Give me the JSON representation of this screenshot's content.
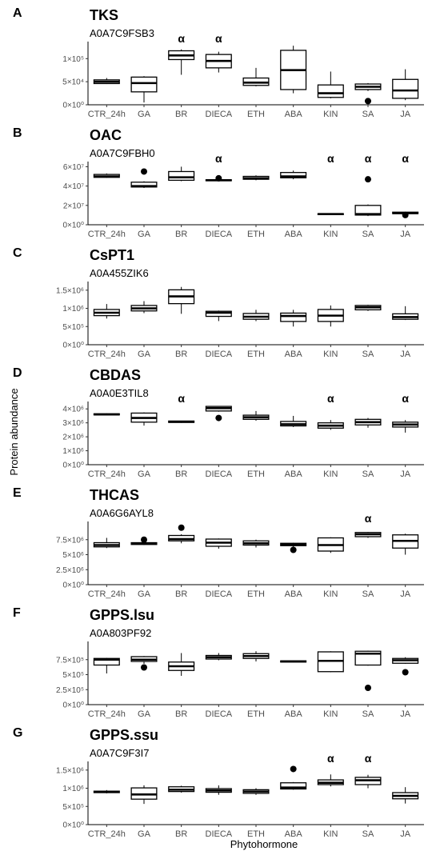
{
  "chart_data": {
    "type": "box",
    "xlabel": "Phytohormone",
    "ylabel": "Protein abundance",
    "categories": [
      "CTR_24h",
      "GA",
      "BR",
      "DIECA",
      "ETH",
      "ABA",
      "KIN",
      "SA",
      "JA"
    ],
    "significance_symbol": "α",
    "panels": [
      {
        "letter": "A",
        "title": "TKS",
        "subtitle": "A0A7C9FSB3",
        "ylim": [
          0,
          130000
        ],
        "y_ticks": [
          0,
          50000,
          100000
        ],
        "y_tick_labels": [
          "0×10⁰",
          "5×10⁴",
          "1×10⁵"
        ],
        "significant": [
          "BR",
          "DIECA"
        ],
        "boxes": [
          {
            "category": "CTR_24h",
            "whisker_low": 45000,
            "q1": 46000,
            "median": 50000,
            "q3": 54000,
            "whisker_high": 58000,
            "outliers": []
          },
          {
            "category": "GA",
            "whisker_low": 5000,
            "q1": 28000,
            "median": 47000,
            "q3": 60000,
            "whisker_high": 62000,
            "outliers": []
          },
          {
            "category": "BR",
            "whisker_low": 65000,
            "q1": 98000,
            "median": 107000,
            "q3": 117000,
            "whisker_high": 120000,
            "outliers": []
          },
          {
            "category": "DIECA",
            "whisker_low": 70000,
            "q1": 80000,
            "median": 95000,
            "q3": 109000,
            "whisker_high": 115000,
            "outliers": []
          },
          {
            "category": "ETH",
            "whisker_low": 40000,
            "q1": 42000,
            "median": 48000,
            "q3": 58000,
            "whisker_high": 80000,
            "outliers": []
          },
          {
            "category": "ABA",
            "whisker_low": 25000,
            "q1": 33000,
            "median": 75000,
            "q3": 118000,
            "whisker_high": 128000,
            "outliers": []
          },
          {
            "category": "KIN",
            "whisker_low": 14000,
            "q1": 16000,
            "median": 25000,
            "q3": 43000,
            "whisker_high": 72000,
            "outliers": []
          },
          {
            "category": "SA",
            "whisker_low": 30000,
            "q1": 33000,
            "median": 39000,
            "q3": 45000,
            "whisker_high": 47000,
            "outliers": [
              8000
            ]
          },
          {
            "category": "JA",
            "whisker_low": 10000,
            "q1": 14000,
            "median": 31000,
            "q3": 55000,
            "whisker_high": 77000,
            "outliers": []
          }
        ]
      },
      {
        "letter": "B",
        "title": "OAC",
        "subtitle": "A0A7C9FBH0",
        "ylim": [
          0,
          62000000
        ],
        "y_ticks": [
          0,
          20000000,
          40000000,
          60000000
        ],
        "y_tick_labels": [
          "0×10⁰",
          "2×10⁷",
          "4×10⁷",
          "6×10⁷"
        ],
        "significant": [
          "DIECA",
          "KIN",
          "SA",
          "JA"
        ],
        "boxes": [
          {
            "category": "CTR_24h",
            "whisker_low": 48500000,
            "q1": 49000000,
            "median": 50000000,
            "q3": 52000000,
            "whisker_high": 53000000,
            "outliers": []
          },
          {
            "category": "GA",
            "whisker_low": 38000000,
            "q1": 39000000,
            "median": 40000000,
            "q3": 44000000,
            "whisker_high": 45000000,
            "outliers": [
              55000000
            ]
          },
          {
            "category": "BR",
            "whisker_low": 45000000,
            "q1": 46000000,
            "median": 49000000,
            "q3": 55000000,
            "whisker_high": 60000000,
            "outliers": []
          },
          {
            "category": "DIECA",
            "whisker_low": 45000000,
            "q1": 45500000,
            "median": 46000000,
            "q3": 46500000,
            "whisker_high": 47000000,
            "outliers": [
              48000000
            ]
          },
          {
            "category": "ETH",
            "whisker_low": 46000000,
            "q1": 47000000,
            "median": 48000000,
            "q3": 50000000,
            "whisker_high": 51000000,
            "outliers": []
          },
          {
            "category": "ABA",
            "whisker_low": 47000000,
            "q1": 48500000,
            "median": 50000000,
            "q3": 54000000,
            "whisker_high": 56000000,
            "outliers": []
          },
          {
            "category": "KIN",
            "whisker_low": 10000000,
            "q1": 10500000,
            "median": 11000000,
            "q3": 11500000,
            "whisker_high": 12000000,
            "outliers": []
          },
          {
            "category": "SA",
            "whisker_low": 9000000,
            "q1": 10000000,
            "median": 11000000,
            "q3": 20000000,
            "whisker_high": 21000000,
            "outliers": [
              47000000
            ]
          },
          {
            "category": "JA",
            "whisker_low": 11000000,
            "q1": 11500000,
            "median": 12000000,
            "q3": 13000000,
            "whisker_high": 13500000,
            "outliers": [
              10000000
            ]
          }
        ]
      },
      {
        "letter": "C",
        "title": "CsPT1",
        "subtitle": "A0A455ZIK6",
        "ylim": [
          0,
          1650000
        ],
        "y_ticks": [
          0,
          500000,
          1000000,
          1500000
        ],
        "y_tick_labels": [
          "0×10⁰",
          "5×10⁵",
          "1×10⁶",
          "1.5×10⁶"
        ],
        "significant": [],
        "boxes": [
          {
            "category": "CTR_24h",
            "whisker_low": 720000,
            "q1": 800000,
            "median": 880000,
            "q3": 970000,
            "whisker_high": 1120000,
            "outliers": []
          },
          {
            "category": "GA",
            "whisker_low": 870000,
            "q1": 930000,
            "median": 1000000,
            "q3": 1080000,
            "whisker_high": 1200000,
            "outliers": []
          },
          {
            "category": "BR",
            "whisker_low": 850000,
            "q1": 1130000,
            "median": 1330000,
            "q3": 1510000,
            "whisker_high": 1590000,
            "outliers": []
          },
          {
            "category": "DIECA",
            "whisker_low": 650000,
            "q1": 780000,
            "median": 880000,
            "q3": 920000,
            "whisker_high": 940000,
            "outliers": []
          },
          {
            "category": "ETH",
            "whisker_low": 650000,
            "q1": 700000,
            "median": 770000,
            "q3": 860000,
            "whisker_high": 960000,
            "outliers": []
          },
          {
            "category": "ABA",
            "whisker_low": 500000,
            "q1": 640000,
            "median": 790000,
            "q3": 870000,
            "whisker_high": 960000,
            "outliers": []
          },
          {
            "category": "KIN",
            "whisker_low": 500000,
            "q1": 640000,
            "median": 800000,
            "q3": 970000,
            "whisker_high": 1080000,
            "outliers": []
          },
          {
            "category": "SA",
            "whisker_low": 930000,
            "q1": 960000,
            "median": 1030000,
            "q3": 1080000,
            "whisker_high": 1100000,
            "outliers": []
          },
          {
            "category": "JA",
            "whisker_low": 680000,
            "q1": 700000,
            "median": 760000,
            "q3": 850000,
            "whisker_high": 1060000,
            "outliers": []
          }
        ]
      },
      {
        "letter": "D",
        "title": "CBDAS",
        "subtitle": "A0A0E3TIL8",
        "ylim": [
          0,
          4300000
        ],
        "y_ticks": [
          0,
          1000000,
          2000000,
          3000000,
          4000000
        ],
        "y_tick_labels": [
          "0×10⁰",
          "1×10⁶",
          "2×10⁶",
          "3×10⁶",
          "4×10⁶"
        ],
        "significant": [
          "BR",
          "KIN",
          "JA"
        ],
        "boxes": [
          {
            "category": "CTR_24h",
            "whisker_low": 3550000,
            "q1": 3570000,
            "median": 3600000,
            "q3": 3650000,
            "whisker_high": 3680000,
            "outliers": []
          },
          {
            "category": "GA",
            "whisker_low": 2800000,
            "q1": 3050000,
            "median": 3350000,
            "q3": 3700000,
            "whisker_high": 3750000,
            "outliers": []
          },
          {
            "category": "BR",
            "whisker_low": 3000000,
            "q1": 3030000,
            "median": 3080000,
            "q3": 3130000,
            "whisker_high": 3150000,
            "outliers": []
          },
          {
            "category": "DIECA",
            "whisker_low": 3800000,
            "q1": 3850000,
            "median": 4050000,
            "q3": 4180000,
            "whisker_high": 4200000,
            "outliers": [
              3350000
            ]
          },
          {
            "category": "ETH",
            "whisker_low": 3150000,
            "q1": 3250000,
            "median": 3400000,
            "q3": 3550000,
            "whisker_high": 3850000,
            "outliers": []
          },
          {
            "category": "ABA",
            "whisker_low": 2700000,
            "q1": 2780000,
            "median": 2900000,
            "q3": 3100000,
            "whisker_high": 3500000,
            "outliers": []
          },
          {
            "category": "KIN",
            "whisker_low": 2500000,
            "q1": 2620000,
            "median": 2800000,
            "q3": 3000000,
            "whisker_high": 3200000,
            "outliers": []
          },
          {
            "category": "SA",
            "whisker_low": 2650000,
            "q1": 2850000,
            "median": 3050000,
            "q3": 3250000,
            "whisker_high": 3350000,
            "outliers": []
          },
          {
            "category": "JA",
            "whisker_low": 2300000,
            "q1": 2700000,
            "median": 2880000,
            "q3": 3050000,
            "whisker_high": 3200000,
            "outliers": []
          }
        ]
      },
      {
        "letter": "E",
        "title": "THCAS",
        "subtitle": "A0A6G6AYL8",
        "ylim": [
          0,
          10000000
        ],
        "y_ticks": [
          0,
          2500000,
          5000000,
          7500000
        ],
        "y_tick_labels": [
          "0×10⁰",
          "2.5×10⁶",
          "5×10⁶",
          "7.5×10⁶"
        ],
        "significant": [
          "SA"
        ],
        "boxes": [
          {
            "category": "CTR_24h",
            "whisker_low": 6100000,
            "q1": 6300000,
            "median": 6600000,
            "q3": 7000000,
            "whisker_high": 7800000,
            "outliers": []
          },
          {
            "category": "GA",
            "whisker_low": 6600000,
            "q1": 6700000,
            "median": 6900000,
            "q3": 7000000,
            "whisker_high": 7100000,
            "outliers": [
              7500000
            ]
          },
          {
            "category": "BR",
            "whisker_low": 6900000,
            "q1": 7300000,
            "median": 7600000,
            "q3": 8200000,
            "whisker_high": 8400000,
            "outliers": [
              9500000
            ]
          },
          {
            "category": "DIECA",
            "whisker_low": 6000000,
            "q1": 6400000,
            "median": 7000000,
            "q3": 7600000,
            "whisker_high": 7700000,
            "outliers": []
          },
          {
            "category": "ETH",
            "whisker_low": 6200000,
            "q1": 6600000,
            "median": 6900000,
            "q3": 7300000,
            "whisker_high": 7500000,
            "outliers": []
          },
          {
            "category": "ABA",
            "whisker_low": 6300000,
            "q1": 6500000,
            "median": 6700000,
            "q3": 6900000,
            "whisker_high": 7000000,
            "outliers": [
              5800000
            ]
          },
          {
            "category": "KIN",
            "whisker_low": 5300000,
            "q1": 5600000,
            "median": 6600000,
            "q3": 7800000,
            "whisker_high": 7900000,
            "outliers": []
          },
          {
            "category": "SA",
            "whisker_low": 7800000,
            "q1": 8000000,
            "median": 8400000,
            "q3": 8700000,
            "whisker_high": 8800000,
            "outliers": []
          },
          {
            "category": "JA",
            "whisker_low": 5000000,
            "q1": 6100000,
            "median": 7300000,
            "q3": 8300000,
            "whisker_high": 8500000,
            "outliers": []
          }
        ]
      },
      {
        "letter": "F",
        "title": "GPPS.lsu",
        "subtitle": "A0A803PF92",
        "ylim": [
          0,
          1000000
        ],
        "y_ticks": [
          0,
          250000,
          500000,
          750000
        ],
        "y_tick_labels": [
          "0×10⁰",
          "2.5×10⁵",
          "5×10⁵",
          "7.5×10⁵"
        ],
        "significant": [],
        "boxes": [
          {
            "category": "CTR_24h",
            "whisker_low": 520000,
            "q1": 660000,
            "median": 750000,
            "q3": 770000,
            "whisker_high": 780000,
            "outliers": []
          },
          {
            "category": "GA",
            "whisker_low": 680000,
            "q1": 720000,
            "median": 750000,
            "q3": 800000,
            "whisker_high": 810000,
            "outliers": [
              620000
            ]
          },
          {
            "category": "BR",
            "whisker_low": 480000,
            "q1": 570000,
            "median": 640000,
            "q3": 710000,
            "whisker_high": 860000,
            "outliers": []
          },
          {
            "category": "DIECA",
            "whisker_low": 740000,
            "q1": 760000,
            "median": 790000,
            "q3": 820000,
            "whisker_high": 860000,
            "outliers": []
          },
          {
            "category": "ETH",
            "whisker_low": 720000,
            "q1": 770000,
            "median": 810000,
            "q3": 850000,
            "whisker_high": 890000,
            "outliers": []
          },
          {
            "category": "ABA",
            "whisker_low": 705000,
            "q1": 710000,
            "median": 720000,
            "q3": 730000,
            "whisker_high": 735000,
            "outliers": []
          },
          {
            "category": "KIN",
            "whisker_low": 540000,
            "q1": 550000,
            "median": 730000,
            "q3": 880000,
            "whisker_high": 890000,
            "outliers": []
          },
          {
            "category": "SA",
            "whisker_low": 650000,
            "q1": 660000,
            "median": 850000,
            "q3": 890000,
            "whisker_high": 900000,
            "outliers": [
              280000
            ]
          },
          {
            "category": "JA",
            "whisker_low": 680000,
            "q1": 690000,
            "median": 740000,
            "q3": 770000,
            "whisker_high": 790000,
            "outliers": [
              540000
            ]
          }
        ]
      },
      {
        "letter": "G",
        "title": "GPPS.ssu",
        "subtitle": "A0A7C9F3I7",
        "ylim": [
          0,
          1650000
        ],
        "y_ticks": [
          0,
          500000,
          1000000,
          1500000
        ],
        "y_tick_labels": [
          "0×10⁰",
          "5×10⁵",
          "1×10⁶",
          "1.5×10⁶"
        ],
        "significant": [
          "KIN",
          "SA"
        ],
        "boxes": [
          {
            "category": "CTR_24h",
            "whisker_low": 860000,
            "q1": 880000,
            "median": 900000,
            "q3": 920000,
            "whisker_high": 950000,
            "outliers": []
          },
          {
            "category": "GA",
            "whisker_low": 570000,
            "q1": 700000,
            "median": 830000,
            "q3": 1010000,
            "whisker_high": 1080000,
            "outliers": []
          },
          {
            "category": "BR",
            "whisker_low": 880000,
            "q1": 910000,
            "median": 960000,
            "q3": 1040000,
            "whisker_high": 1070000,
            "outliers": []
          },
          {
            "category": "DIECA",
            "whisker_low": 820000,
            "q1": 890000,
            "median": 940000,
            "q3": 990000,
            "whisker_high": 1080000,
            "outliers": []
          },
          {
            "category": "ETH",
            "whisker_low": 820000,
            "q1": 860000,
            "median": 910000,
            "q3": 960000,
            "whisker_high": 1000000,
            "outliers": []
          },
          {
            "category": "ABA",
            "whisker_low": 960000,
            "q1": 980000,
            "median": 1020000,
            "q3": 1150000,
            "whisker_high": 1170000,
            "outliers": [
              1530000
            ]
          },
          {
            "category": "KIN",
            "whisker_low": 1050000,
            "q1": 1100000,
            "median": 1150000,
            "q3": 1230000,
            "whisker_high": 1380000,
            "outliers": []
          },
          {
            "category": "SA",
            "whisker_low": 1000000,
            "q1": 1100000,
            "median": 1220000,
            "q3": 1300000,
            "whisker_high": 1370000,
            "outliers": []
          },
          {
            "category": "JA",
            "whisker_low": 580000,
            "q1": 710000,
            "median": 790000,
            "q3": 880000,
            "whisker_high": 1030000,
            "outliers": []
          }
        ]
      }
    ]
  }
}
